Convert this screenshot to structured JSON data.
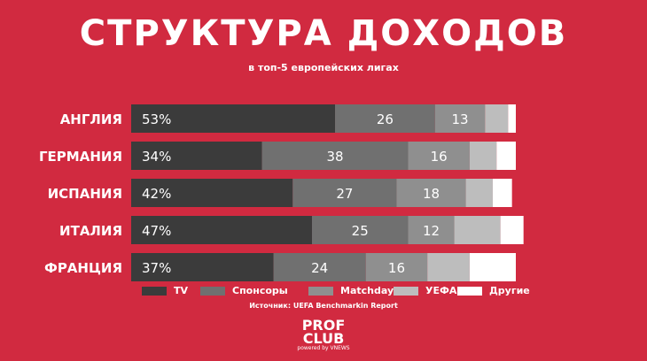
{
  "header": {
    "title": "СТРУКТУРА ДОХОДОВ",
    "subtitle": "в топ-5 европейских лигах"
  },
  "chart_data": {
    "type": "bar",
    "orientation": "horizontal",
    "stacked": true,
    "title": "СТРУКТУРА ДОХОДОВ",
    "subtitle": "в топ-5 европейских лигах",
    "categories": [
      "АНГЛИЯ",
      "ГЕРМАНИЯ",
      "ИСПАНИЯ",
      "ИТАЛИЯ",
      "ФРАНЦИЯ"
    ],
    "series": [
      {
        "name": "TV",
        "values": [
          53,
          34,
          42,
          47,
          37
        ],
        "color": "#3b3b3b",
        "labels": [
          "53%",
          "34%",
          "42%",
          "47%",
          "37%"
        ]
      },
      {
        "name": "Спонсоры",
        "values": [
          26,
          38,
          27,
          25,
          24
        ],
        "color": "#707070",
        "labels": [
          "26",
          "38",
          "27",
          "25",
          "24"
        ]
      },
      {
        "name": "Matchday",
        "values": [
          13,
          16,
          18,
          12,
          16
        ],
        "color": "#8f8f8f",
        "labels": [
          "13",
          "16",
          "18",
          "12",
          "16"
        ]
      },
      {
        "name": "УЕФА",
        "values": [
          6,
          7,
          7,
          12,
          11
        ],
        "color": "#bdbdbd",
        "labels": [
          "",
          "",
          "",
          "",
          ""
        ]
      },
      {
        "name": "Другие",
        "values": [
          2,
          5,
          5,
          6,
          12
        ],
        "color": "#ffffff",
        "labels": [
          "",
          "",
          "",
          "",
          ""
        ]
      }
    ],
    "xlim": [
      0,
      100
    ],
    "grid": false,
    "legend_position": "bottom"
  },
  "legend": [
    {
      "label": "TV",
      "color": "#3b3b3b"
    },
    {
      "label": "Спонсоры",
      "color": "#707070"
    },
    {
      "label": "Matchday",
      "color": "#8f8f8f"
    },
    {
      "label": "УЕФА",
      "color": "#bdbdbd"
    },
    {
      "label": "Другие",
      "color": "#ffffff"
    }
  ],
  "source": "Источник: UEFA Benchmarkin Report",
  "logo": {
    "line1": "PROF",
    "line2": "CLUB",
    "tagline": "powered by VNEWS"
  }
}
